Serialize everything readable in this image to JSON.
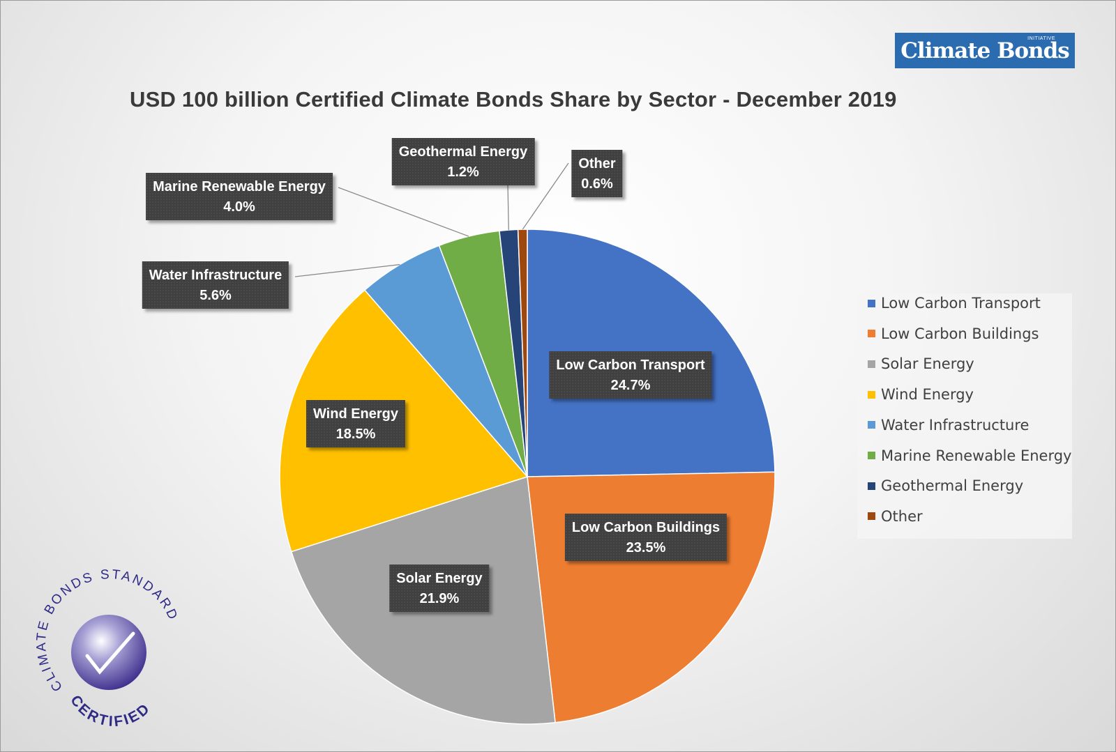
{
  "brand": {
    "text": "Climate Bonds",
    "tag": "INITIATIVE"
  },
  "seal": {
    "arc_text": "CLIMATE BONDS STANDARD",
    "bottom_text": "CERTIFIED"
  },
  "chart_data": {
    "type": "pie",
    "title": "USD 100 billion Certified Climate Bonds Share by Sector - December 2019",
    "legend_position": "right",
    "slices": [
      {
        "name": "Low Carbon Transport",
        "value": 24.7,
        "label": "24.7%",
        "color": "#4472c4"
      },
      {
        "name": "Low Carbon Buildings",
        "value": 23.5,
        "label": "23.5%",
        "color": "#ed7d31"
      },
      {
        "name": "Solar Energy",
        "value": 21.9,
        "label": "21.9%",
        "color": "#a5a5a5"
      },
      {
        "name": "Wind Energy",
        "value": 18.5,
        "label": "18.5%",
        "color": "#ffc000"
      },
      {
        "name": "Water Infrastructure",
        "value": 5.6,
        "label": "5.6%",
        "color": "#5b9bd5"
      },
      {
        "name": "Marine Renewable Energy",
        "value": 4.0,
        "label": "4.0%",
        "color": "#70ad47"
      },
      {
        "name": "Geothermal Energy",
        "value": 1.2,
        "label": "1.2%",
        "color": "#264478"
      },
      {
        "name": "Other",
        "value": 0.6,
        "label": "0.6%",
        "color": "#9e480e"
      }
    ]
  }
}
